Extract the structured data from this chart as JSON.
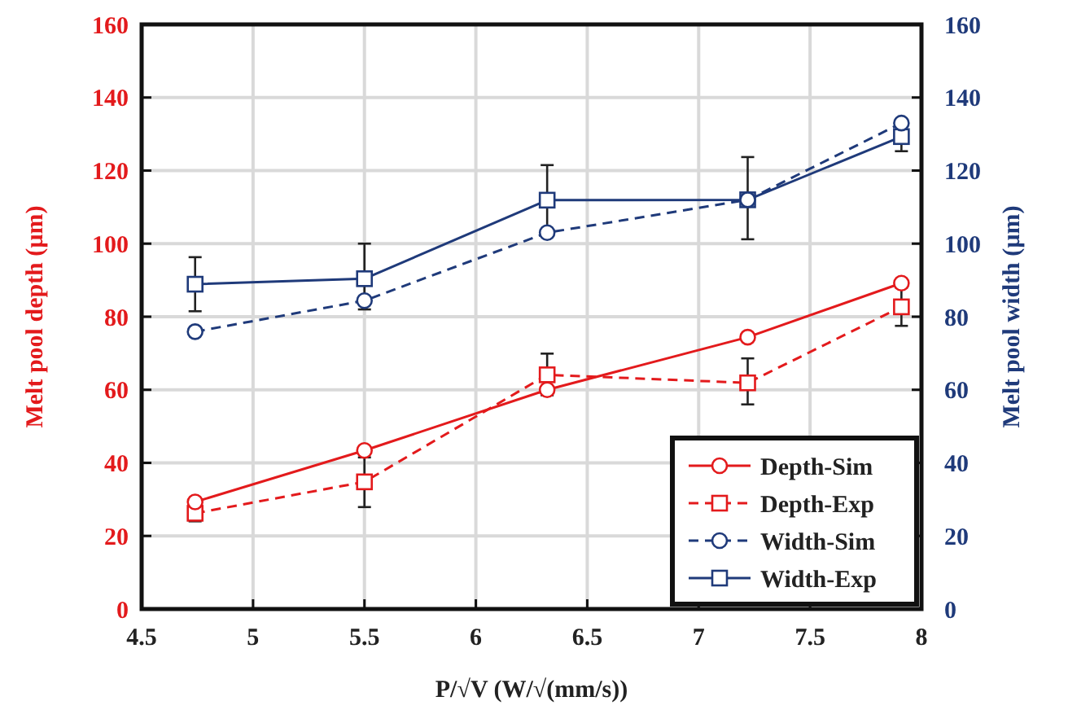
{
  "chart_data": {
    "type": "line",
    "xlabel": "P/√V  (W/√(mm/s))",
    "ylabel": "Melt pool depth (µm)",
    "y2label": "Melt pool width (µm)",
    "x": [
      4.74,
      5.5,
      6.32,
      7.22,
      7.91
    ],
    "xlim": [
      4.5,
      8
    ],
    "xticks": [
      4.5,
      5,
      5.5,
      6,
      6.5,
      7,
      7.5,
      8
    ],
    "ylim": [
      0,
      160
    ],
    "yticks": [
      0,
      20,
      40,
      60,
      80,
      100,
      120,
      140,
      160
    ],
    "y2lim": [
      0,
      160
    ],
    "y2ticks": [
      0,
      20,
      40,
      60,
      80,
      100,
      120,
      140,
      160
    ],
    "grid": true,
    "legend": "bottom right",
    "series": [
      {
        "name": "Depth-Sim",
        "color": "#e31a1c",
        "values": [
          29.3,
          43.4,
          60,
          74.4,
          89.2
        ],
        "marker": "circle",
        "line_style": "solid"
      },
      {
        "name": "Depth-Exp",
        "color": "#e31a1c",
        "values": [
          26.2,
          34.8,
          64.1,
          61.9,
          82.7
        ],
        "errors": [
          [
            24,
            28.5
          ],
          [
            27.9,
            41.5
          ],
          [
            58.5,
            69.9
          ],
          [
            56,
            68.6
          ],
          [
            77.5,
            88
          ]
        ],
        "marker": "square",
        "line_style": "dashed"
      },
      {
        "name": "Width-Sim",
        "color": "#1f3a7a",
        "axis": "y2",
        "values": [
          75.9,
          84.4,
          103,
          112,
          133
        ],
        "marker": "circle",
        "line_style": "dashed"
      },
      {
        "name": "Width-Exp",
        "color": "#1f3a7a",
        "axis": "y2",
        "values": [
          88.9,
          90.4,
          111.9,
          112,
          129.3
        ],
        "errors": [
          [
            81.5,
            96.3
          ],
          [
            82,
            100
          ],
          [
            103,
            121.5
          ],
          [
            101.2,
            123.7
          ],
          [
            125.3,
            134
          ]
        ],
        "marker": "square",
        "line_style": "solid"
      }
    ]
  }
}
